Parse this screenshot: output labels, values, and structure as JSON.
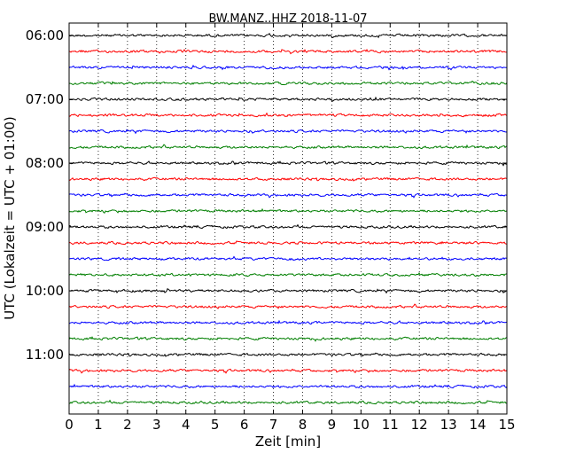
{
  "chart_data": {
    "type": "line",
    "title": "BW.MANZ..HHZ 2018-11-07",
    "xlabel": "Zeit  [min]",
    "ylabel": "UTC (Lokalzeit = UTC + 01:00)",
    "xlim": [
      0,
      15
    ],
    "x_ticks": [
      "0",
      "1",
      "2",
      "3",
      "4",
      "5",
      "6",
      "7",
      "8",
      "9",
      "10",
      "11",
      "12",
      "13",
      "14",
      "15"
    ],
    "y_tick_labels": [
      "06:00",
      "07:00",
      "08:00",
      "09:00",
      "10:00",
      "11:00"
    ],
    "grid": "vertical dotted at each minute",
    "series_colors": [
      "#000000",
      "#ff0000",
      "#0000ff",
      "#007f00"
    ],
    "trace_start_times": [
      "06:00",
      "06:15",
      "06:30",
      "06:45",
      "07:00",
      "07:15",
      "07:30",
      "07:45",
      "08:00",
      "08:15",
      "08:30",
      "08:45",
      "09:00",
      "09:15",
      "09:30",
      "09:45",
      "10:00",
      "10:15",
      "10:30",
      "10:45",
      "11:00",
      "11:15",
      "11:30",
      "11:45"
    ],
    "trace_duration_min": 15
  }
}
